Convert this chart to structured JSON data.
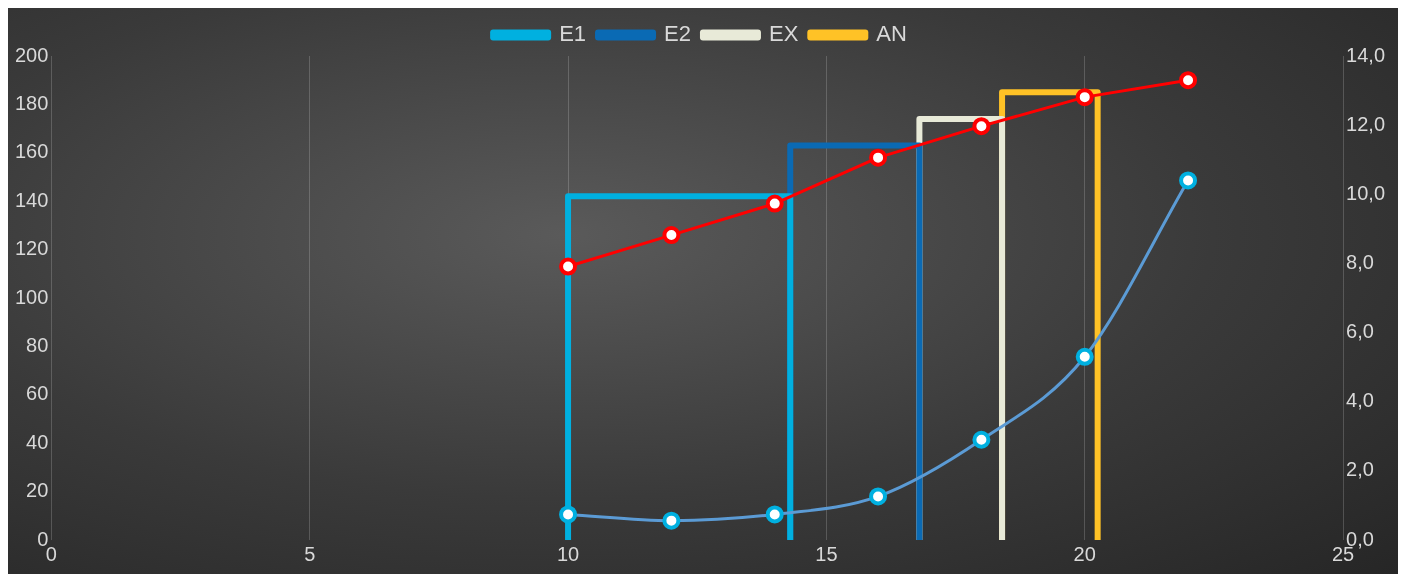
{
  "chart_data": {
    "type": "line",
    "xlim": [
      0,
      25
    ],
    "xticks": [
      0,
      5,
      10,
      15,
      20,
      25
    ],
    "ylim": [
      0,
      200
    ],
    "yticks": [
      0,
      20,
      40,
      60,
      80,
      100,
      120,
      140,
      160,
      180,
      200
    ],
    "y2lim": [
      0,
      14
    ],
    "y2ticks": [
      {
        "value": 0,
        "label": "0,0"
      },
      {
        "value": 2,
        "label": "2,0"
      },
      {
        "value": 4,
        "label": "4,0"
      },
      {
        "value": 6,
        "label": "6,0"
      },
      {
        "value": 8,
        "label": "8,0"
      },
      {
        "value": 10,
        "label": "10,0"
      },
      {
        "value": 12,
        "label": "12,0"
      },
      {
        "value": 14,
        "label": "14,0"
      }
    ],
    "grid": "x",
    "legend": "top",
    "series": [
      {
        "name": "E1",
        "type": "line",
        "color": "#00b0e0",
        "marker": "none",
        "x": [
          10,
          10,
          14.3,
          14.3
        ],
        "values": [
          0,
          142,
          142,
          0
        ]
      },
      {
        "name": "E2",
        "type": "line",
        "color": "#0a6ab4",
        "marker": "none",
        "x": [
          14.3,
          14.3,
          16.8,
          16.8
        ],
        "values": [
          0,
          163,
          163,
          0
        ]
      },
      {
        "name": "EX",
        "type": "line",
        "color": "#e8ead8",
        "marker": "none",
        "x": [
          16.8,
          16.8,
          18.4,
          18.4
        ],
        "values": [
          0,
          174,
          174,
          0
        ]
      },
      {
        "name": "AN",
        "type": "line",
        "color": "#ffc226",
        "marker": "none",
        "x": [
          18.4,
          18.4,
          20.25,
          20.25
        ],
        "values": [
          0,
          185,
          185,
          0
        ]
      },
      {
        "type": "line",
        "color": "#ff0000",
        "marker": "circle",
        "x": [
          10,
          12,
          14,
          16,
          18,
          20,
          22
        ],
        "values": [
          113,
          126,
          139,
          158,
          171,
          183,
          190
        ]
      },
      {
        "type": "line",
        "color": "#5b9bd5",
        "marker": "circle",
        "axis": "y2",
        "x": [
          10,
          12,
          14,
          16,
          18,
          20,
          22
        ],
        "values": [
          0.74,
          0.56,
          0.74,
          1.26,
          2.9,
          5.3,
          10.4
        ]
      }
    ]
  }
}
